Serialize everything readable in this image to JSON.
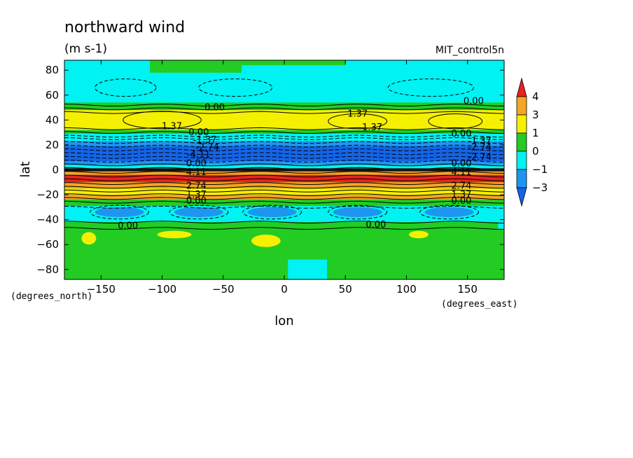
{
  "chart_data": {
    "type": "heatmap",
    "title": "northward wind",
    "units": "(m s-1)",
    "dataset": "MIT_control5n",
    "xlabel": "lon",
    "ylabel": "lat",
    "x_units_label": "(degrees_east)",
    "y_units_label": "(degrees_north)",
    "xlim": [
      -180,
      180
    ],
    "ylim": [
      -88,
      88
    ],
    "x_ticks": [
      -150,
      -100,
      -50,
      0,
      50,
      100,
      150
    ],
    "y_ticks": [
      80,
      60,
      40,
      20,
      0,
      -20,
      -40,
      -60,
      -80
    ],
    "colorbar": {
      "levels": [
        4,
        3,
        1,
        0,
        -1,
        -3
      ],
      "colors": [
        "#e8231f",
        "#f5a623",
        "#f5f000",
        "#22cc22",
        "#00f2f2",
        "#1e96f0",
        "#1464e6"
      ]
    },
    "contour_labels": [
      {
        "text": "0.00",
        "lon": -57,
        "lat": 50
      },
      {
        "text": "0.00",
        "lon": 155,
        "lat": 55
      },
      {
        "text": "1.37",
        "lon": -92,
        "lat": 35
      },
      {
        "text": "1.37",
        "lon": 60,
        "lat": 45
      },
      {
        "text": "1.37",
        "lon": 72,
        "lat": 34
      },
      {
        "text": "0.00",
        "lon": -70,
        "lat": 30
      },
      {
        "text": "0.00",
        "lon": 145,
        "lat": 29
      },
      {
        "text": "-1.37",
        "lon": -65,
        "lat": 24
      },
      {
        "text": "-2.74",
        "lon": -63,
        "lat": 18
      },
      {
        "text": "-1.37",
        "lon": 160,
        "lat": 23
      },
      {
        "text": "-2.74",
        "lon": 160,
        "lat": 18
      },
      {
        "text": "-4.11",
        "lon": -70,
        "lat": 12
      },
      {
        "text": "-2.74",
        "lon": 160,
        "lat": 10
      },
      {
        "text": "0.00",
        "lon": -72,
        "lat": 5
      },
      {
        "text": "0.00",
        "lon": 145,
        "lat": 5
      },
      {
        "text": "4.11",
        "lon": -72,
        "lat": -2
      },
      {
        "text": "4.11",
        "lon": 145,
        "lat": -2
      },
      {
        "text": "2.74",
        "lon": -72,
        "lat": -13
      },
      {
        "text": "2.74",
        "lon": 145,
        "lat": -13
      },
      {
        "text": "1.37",
        "lon": -72,
        "lat": -20
      },
      {
        "text": "1.37",
        "lon": 145,
        "lat": -20
      },
      {
        "text": "0.00",
        "lon": -72,
        "lat": -25
      },
      {
        "text": "0.00",
        "lon": 145,
        "lat": -25
      },
      {
        "text": "0.00",
        "lon": -128,
        "lat": -45
      },
      {
        "text": "0.00",
        "lon": 75,
        "lat": -44
      }
    ]
  }
}
